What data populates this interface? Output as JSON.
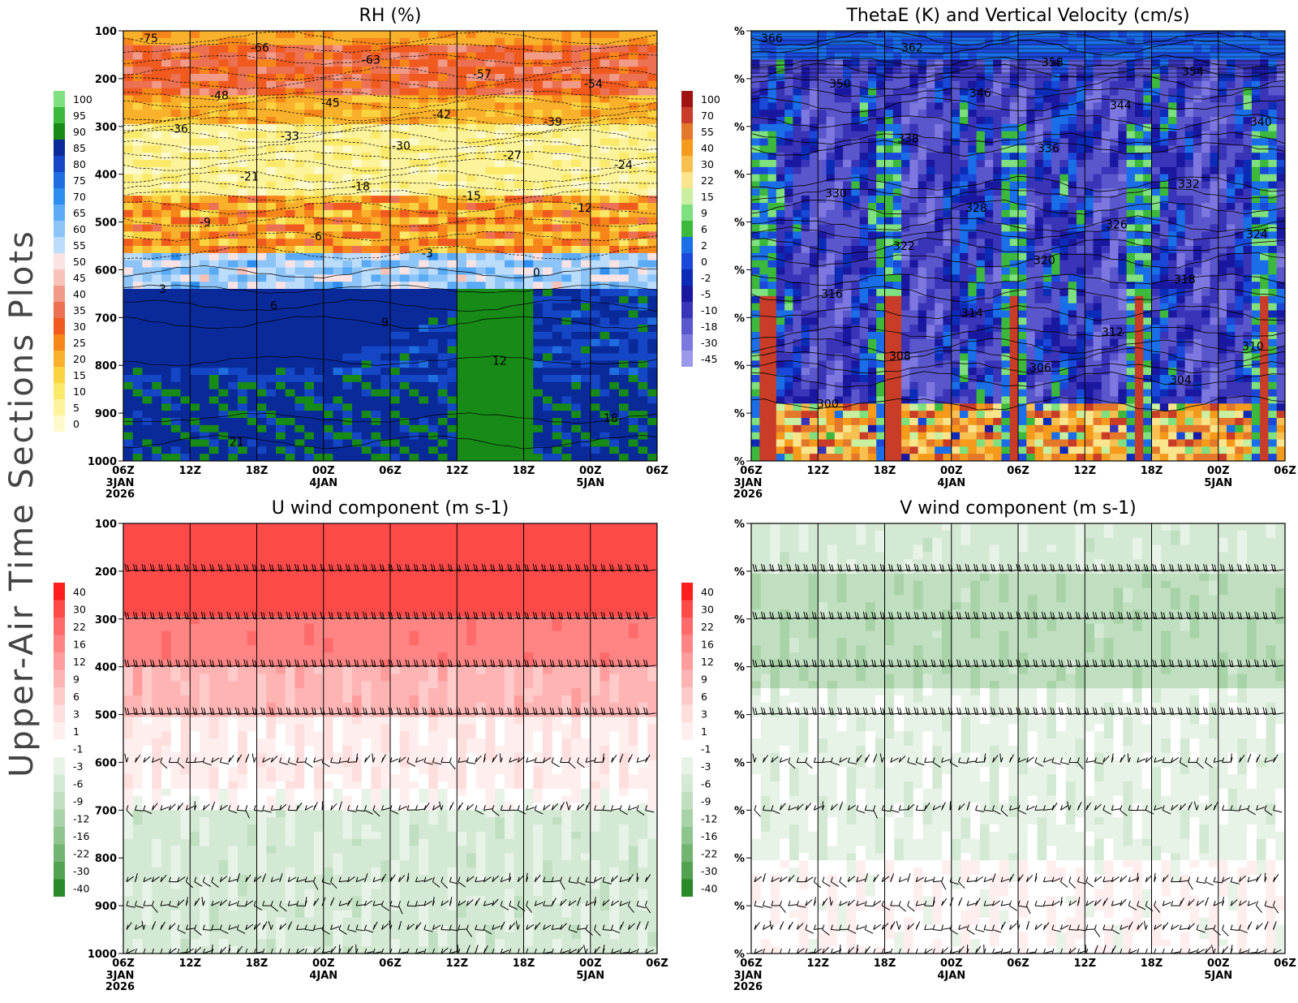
{
  "figure": {
    "side_title": "Upper-Air Time Sections Plots"
  },
  "time_axis": {
    "ticks": [
      "06Z",
      "12Z",
      "18Z",
      "00Z",
      "06Z",
      "12Z",
      "18Z",
      "00Z",
      "06Z"
    ],
    "date_labels": [
      {
        "index": 0,
        "lines": [
          "3JAN",
          "2026"
        ]
      },
      {
        "index": 3,
        "lines": [
          "4JAN"
        ]
      },
      {
        "index": 7,
        "lines": [
          "5JAN"
        ]
      }
    ]
  },
  "chart_data": [
    {
      "id": "rh",
      "type": "heatmap",
      "title": "RH (%)",
      "y_axis": {
        "ticks": [
          "100",
          "200",
          "300",
          "400",
          "500",
          "600",
          "700",
          "800",
          "900",
          "1000"
        ],
        "reversed": true,
        "range": [
          100,
          1000
        ]
      },
      "colorbar": {
        "side": "left",
        "levels": [
          "100",
          "95",
          "90",
          "85",
          "80",
          "75",
          "70",
          "65",
          "60",
          "55",
          "50",
          "45",
          "40",
          "35",
          "30",
          "25",
          "20",
          "15",
          "10",
          "5",
          "0"
        ],
        "colors": [
          "#7ee07e",
          "#3cb83c",
          "#178a17",
          "#0a2a9a",
          "#1446c6",
          "#1f6ee0",
          "#2e8ef0",
          "#5aaaf5",
          "#8cc4f8",
          "#bcdcfb",
          "#fbe3e3",
          "#f8c2b8",
          "#f29a88",
          "#ec7052",
          "#f05a1e",
          "#f7861a",
          "#f9b02a",
          "#fbd340",
          "#fbe96a",
          "#fcf39a",
          "#fffacc"
        ]
      },
      "rh_bands_by_pressure": [
        {
          "p": [
            100,
            130
          ],
          "rh_percent": 25
        },
        {
          "p": [
            130,
            230
          ],
          "rh_percent": 38
        },
        {
          "p": [
            230,
            290
          ],
          "rh_percent": 25
        },
        {
          "p": [
            290,
            440
          ],
          "rh_percent": 10
        },
        {
          "p": [
            440,
            560
          ],
          "rh_percent": 30
        },
        {
          "p": [
            560,
            640
          ],
          "rh_percent": 70
        },
        {
          "p": [
            640,
            1000
          ],
          "rh_percent": 85
        }
      ],
      "temperature_contours_c": [
        {
          "label": "-75",
          "p": 115
        },
        {
          "label": "-66",
          "p": 135
        },
        {
          "label": "-63",
          "p": 160
        },
        {
          "label": "-57",
          "p": 190
        },
        {
          "label": "-54",
          "p": 210
        },
        {
          "label": "-48",
          "p": 235
        },
        {
          "label": "-45",
          "p": 250
        },
        {
          "label": "-42",
          "p": 275
        },
        {
          "label": "-39",
          "p": 290
        },
        {
          "label": "-36",
          "p": 305
        },
        {
          "label": "-33",
          "p": 320
        },
        {
          "label": "-30",
          "p": 340
        },
        {
          "label": "-27",
          "p": 360
        },
        {
          "label": "-24",
          "p": 380
        },
        {
          "label": "-21",
          "p": 405
        },
        {
          "label": "-18",
          "p": 425
        },
        {
          "label": "-15",
          "p": 445
        },
        {
          "label": "-12",
          "p": 470
        },
        {
          "label": "-9",
          "p": 500
        },
        {
          "label": "-6",
          "p": 530
        },
        {
          "label": "-3",
          "p": 565
        },
        {
          "label": "0",
          "p": 605
        },
        {
          "label": "3",
          "p": 640
        },
        {
          "label": "6",
          "p": 675
        },
        {
          "label": "9",
          "p": 710
        },
        {
          "label": "12",
          "p": 790
        },
        {
          "label": "18",
          "p": 910
        },
        {
          "label": "21",
          "p": 960
        }
      ]
    },
    {
      "id": "thetae",
      "type": "heatmap",
      "title": "ThetaE (K) and Vertical Velocity (cm/s)",
      "y_axis": {
        "ticks": [
          "%",
          "%",
          "%",
          "%",
          "%",
          "%",
          "%",
          "%",
          "%",
          "%"
        ],
        "reversed": true
      },
      "colorbar": {
        "side": "left",
        "levels": [
          "100",
          "70",
          "55",
          "40",
          "30",
          "22",
          "15",
          "9",
          "6",
          "2",
          "0",
          "-2",
          "-5",
          "-10",
          "-18",
          "-30",
          "-45"
        ],
        "colors": [
          "#a01414",
          "#c83c28",
          "#e4782a",
          "#f59a1a",
          "#f8c050",
          "#fbe58c",
          "#c8f0a0",
          "#7ee07e",
          "#3cb83c",
          "#1a6ee8",
          "#1a48d8",
          "#0c2cb8",
          "#1a18a0",
          "#3a34b8",
          "#5a56cc",
          "#7c78e0",
          "#9c98ec"
        ]
      },
      "thetae_contours_k": [
        {
          "label": "366",
          "p": 115
        },
        {
          "label": "362",
          "p": 135
        },
        {
          "label": "358",
          "p": 165
        },
        {
          "label": "354",
          "p": 185
        },
        {
          "label": "350",
          "p": 210
        },
        {
          "label": "346",
          "p": 230
        },
        {
          "label": "344",
          "p": 255
        },
        {
          "label": "340",
          "p": 290
        },
        {
          "label": "338",
          "p": 325
        },
        {
          "label": "336",
          "p": 345
        },
        {
          "label": "332",
          "p": 420
        },
        {
          "label": "330",
          "p": 440
        },
        {
          "label": "328",
          "p": 470
        },
        {
          "label": "326",
          "p": 505
        },
        {
          "label": "324",
          "p": 525
        },
        {
          "label": "322",
          "p": 550
        },
        {
          "label": "320",
          "p": 580
        },
        {
          "label": "318",
          "p": 620
        },
        {
          "label": "316",
          "p": 650
        },
        {
          "label": "314",
          "p": 690
        },
        {
          "label": "312",
          "p": 730
        },
        {
          "label": "310",
          "p": 760
        },
        {
          "label": "308",
          "p": 780
        },
        {
          "label": "306",
          "p": 805
        },
        {
          "label": "304",
          "p": 830
        },
        {
          "label": "300",
          "p": 880
        }
      ]
    },
    {
      "id": "u",
      "type": "heatmap",
      "title": "U wind component (m s-1)",
      "y_axis": {
        "ticks": [
          "100",
          "200",
          "300",
          "400",
          "500",
          "600",
          "700",
          "800",
          "900",
          "1000"
        ],
        "reversed": true,
        "range": [
          100,
          1000
        ]
      },
      "colorbar": {
        "side": "left",
        "levels": [
          "40",
          "30",
          "22",
          "16",
          "12",
          "9",
          "6",
          "3",
          "1",
          "-1",
          "-3",
          "-6",
          "-9",
          "-12",
          "-16",
          "-22",
          "-30",
          "-40"
        ],
        "colors": [
          "#ff1e1e",
          "#ff4a4a",
          "#ff6a6a",
          "#ff8484",
          "#ff9c9c",
          "#ffb4b4",
          "#ffcaca",
          "#ffdede",
          "#ffeeee",
          "#ffffff",
          "#e8f3e8",
          "#d4e9d4",
          "#c0dfc0",
          "#a8d2a8",
          "#8ec48e",
          "#72b572",
          "#52a252",
          "#2a8a2a"
        ]
      },
      "u_bands_by_pressure_ms": [
        {
          "p": [
            100,
            300
          ],
          "u": 36
        },
        {
          "p": [
            300,
            400
          ],
          "u": 20
        },
        {
          "p": [
            400,
            500
          ],
          "u": 10
        },
        {
          "p": [
            500,
            650
          ],
          "u": 2
        },
        {
          "p": [
            650,
            700
          ],
          "u": 0
        },
        {
          "p": [
            700,
            1000
          ],
          "u": -4
        }
      ],
      "barb_levels_hpa": [
        200,
        300,
        400,
        500,
        600,
        700,
        850,
        900,
        950,
        1000
      ]
    },
    {
      "id": "v",
      "type": "heatmap",
      "title": "V wind component (m s-1)",
      "y_axis": {
        "ticks": [
          "%",
          "%",
          "%",
          "%",
          "%",
          "%",
          "%",
          "%",
          "%",
          "%"
        ],
        "reversed": true
      },
      "colorbar": {
        "side": "left",
        "levels": [
          "40",
          "30",
          "22",
          "16",
          "12",
          "9",
          "6",
          "3",
          "1",
          "-1",
          "-3",
          "-6",
          "-9",
          "-12",
          "-16",
          "-22",
          "-30",
          "-40"
        ],
        "colors": [
          "#ff1e1e",
          "#ff4a4a",
          "#ff6a6a",
          "#ff8484",
          "#ff9c9c",
          "#ffb4b4",
          "#ffcaca",
          "#ffdede",
          "#ffeeee",
          "#ffffff",
          "#e8f3e8",
          "#d4e9d4",
          "#c0dfc0",
          "#a8d2a8",
          "#8ec48e",
          "#72b572",
          "#52a252",
          "#2a8a2a"
        ]
      },
      "v_bands_by_pressure_ms": [
        {
          "p": [
            100,
            200
          ],
          "v": -4
        },
        {
          "p": [
            200,
            450
          ],
          "v": -8
        },
        {
          "p": [
            450,
            800
          ],
          "v": -2
        },
        {
          "p": [
            800,
            1000
          ],
          "v": 0.5
        }
      ],
      "barb_levels_hpa": [
        200,
        300,
        400,
        500,
        600,
        700,
        850,
        900,
        950,
        1000
      ]
    }
  ]
}
